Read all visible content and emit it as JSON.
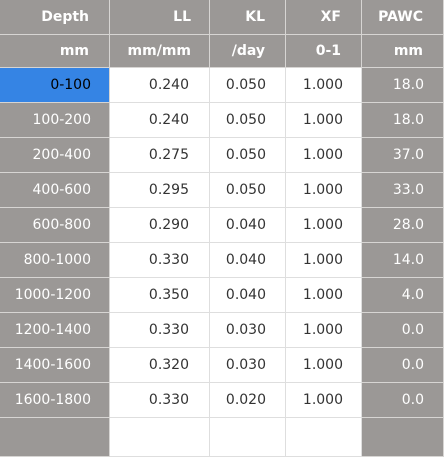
{
  "columns": [
    {
      "key": "depth",
      "name": "Depth",
      "unit": "mm"
    },
    {
      "key": "ll",
      "name": "LL",
      "unit": "mm/mm"
    },
    {
      "key": "kl",
      "name": "KL",
      "unit": "/day"
    },
    {
      "key": "xf",
      "name": "XF",
      "unit": "0-1"
    },
    {
      "key": "pawc",
      "name": "PAWC",
      "unit": "mm"
    }
  ],
  "rows": [
    {
      "depth": "0-100",
      "ll": "0.240",
      "kl": "0.050",
      "xf": "1.000",
      "pawc": "18.0"
    },
    {
      "depth": "100-200",
      "ll": "0.240",
      "kl": "0.050",
      "xf": "1.000",
      "pawc": "18.0"
    },
    {
      "depth": "200-400",
      "ll": "0.275",
      "kl": "0.050",
      "xf": "1.000",
      "pawc": "37.0"
    },
    {
      "depth": "400-600",
      "ll": "0.295",
      "kl": "0.050",
      "xf": "1.000",
      "pawc": "33.0"
    },
    {
      "depth": "600-800",
      "ll": "0.290",
      "kl": "0.040",
      "xf": "1.000",
      "pawc": "28.0"
    },
    {
      "depth": "800-1000",
      "ll": "0.330",
      "kl": "0.040",
      "xf": "1.000",
      "pawc": "14.0"
    },
    {
      "depth": "1000-1200",
      "ll": "0.350",
      "kl": "0.040",
      "xf": "1.000",
      "pawc": "4.0"
    },
    {
      "depth": "1200-1400",
      "ll": "0.330",
      "kl": "0.030",
      "xf": "1.000",
      "pawc": "0.0"
    },
    {
      "depth": "1400-1600",
      "ll": "0.320",
      "kl": "0.030",
      "xf": "1.000",
      "pawc": "0.0"
    },
    {
      "depth": "1600-1800",
      "ll": "0.330",
      "kl": "0.020",
      "xf": "1.000",
      "pawc": "0.0"
    },
    {
      "depth": "",
      "ll": "",
      "kl": "",
      "xf": "",
      "pawc": ""
    }
  ],
  "selected_row": 0,
  "colors": {
    "header_bg": "#9b9896",
    "selected_bg": "#3584e4",
    "cell_bg": "#ffffff"
  }
}
